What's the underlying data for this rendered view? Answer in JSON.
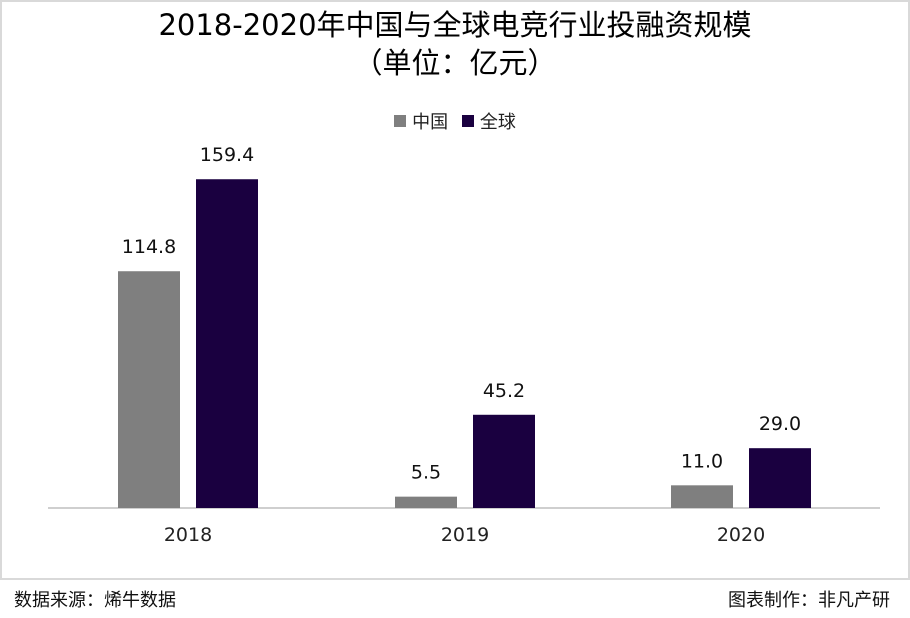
{
  "chart_data": {
    "type": "bar",
    "title": "2018-2020年中国与全球电竞行业投融资规模",
    "subtitle": "（单位：亿元）",
    "categories": [
      "2018",
      "2019",
      "2020"
    ],
    "series": [
      {
        "name": "中国",
        "color": "#7f7f7f",
        "values": [
          114.8,
          5.5,
          11.0
        ],
        "labels": [
          "114.8",
          "5.5",
          "11.0"
        ]
      },
      {
        "name": "全球",
        "color": "#1a0040",
        "values": [
          159.4,
          45.2,
          29.0
        ],
        "labels": [
          "159.4",
          "45.2",
          "29.0"
        ]
      }
    ],
    "ylim": [
      0,
      160
    ],
    "grid": false,
    "legend_position": "top"
  },
  "footer": {
    "source": "数据来源：烯牛数据",
    "credit": "图表制作：非凡产研"
  }
}
